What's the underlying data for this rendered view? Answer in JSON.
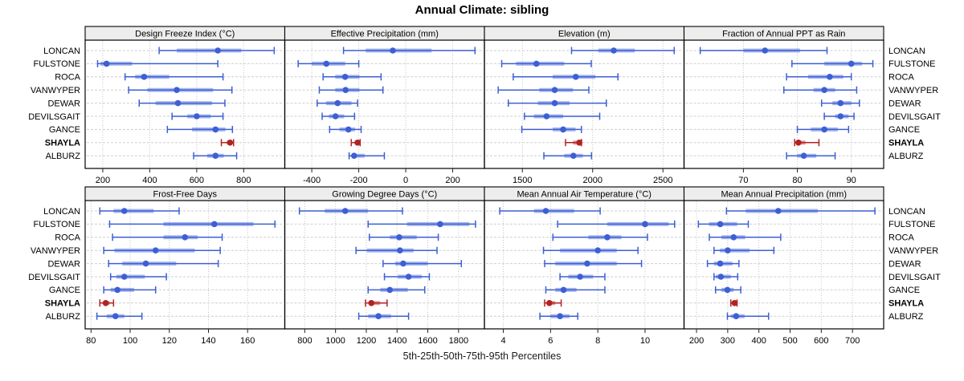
{
  "chart_data": {
    "type": "dotplot-percentiles",
    "title": "Annual Climate: sibling",
    "caption": "5th-25th-50th-75th-95th Percentiles",
    "percentile_labels": [
      "5th",
      "25th",
      "50th",
      "75th",
      "95th"
    ],
    "rows": [
      "LONCAN",
      "FULSTONE",
      "ROCA",
      "VANWYPER",
      "DEWAR",
      "DEVILSGAIT",
      "GANCE",
      "SHAYLA",
      "ALBURZ"
    ],
    "highlighted_row": "SHAYLA",
    "legend_position": "none",
    "grid": "dotted",
    "colors": {
      "series": "#3C5FD4",
      "series_band": "rgba(60,95,212,0.45)",
      "highlight": "#B22222",
      "highlight_band": "rgba(178,34,34,0.45)",
      "gridline": "#C4C4C4",
      "row_guide": "#CFCFCF",
      "strip_bg": "#EDEDED",
      "border": "#000000"
    },
    "panels": [
      {
        "title": "Design Freeze Index (°C)",
        "grid_row": 0,
        "grid_col": 0,
        "xlim": [
          125,
          975
        ],
        "ticks": [
          200,
          400,
          600,
          800
        ],
        "values": [
          [
            440,
            515,
            690,
            790,
            930
          ],
          [
            178,
            190,
            216,
            325,
            690
          ],
          [
            295,
            338,
            376,
            483,
            712
          ],
          [
            310,
            390,
            515,
            670,
            750
          ],
          [
            355,
            425,
            520,
            665,
            720
          ],
          [
            495,
            560,
            600,
            660,
            712
          ],
          [
            475,
            580,
            680,
            722,
            752
          ],
          [
            705,
            728,
            742,
            750,
            757
          ],
          [
            587,
            645,
            680,
            715,
            770
          ]
        ]
      },
      {
        "title": "Effective Precipitation (mm)",
        "grid_row": 0,
        "grid_col": 1,
        "xlim": [
          -515,
          335
        ],
        "ticks": [
          -400,
          -200,
          0,
          200
        ],
        "values": [
          [
            -265,
            -170,
            -55,
            110,
            295
          ],
          [
            -458,
            -400,
            -338,
            -258,
            -200
          ],
          [
            -352,
            -300,
            -258,
            -197,
            -105
          ],
          [
            -368,
            -300,
            -256,
            -197,
            -97
          ],
          [
            -377,
            -339,
            -290,
            -231,
            -205
          ],
          [
            -356,
            -327,
            -299,
            -262,
            -218
          ],
          [
            -324,
            -282,
            -244,
            -216,
            -190
          ],
          [
            -232,
            -218,
            -205,
            -200,
            -194
          ],
          [
            -241,
            -228,
            -220,
            -175,
            -91
          ]
        ]
      },
      {
        "title": "Elevation (m)",
        "grid_row": 0,
        "grid_col": 2,
        "xlim": [
          1230,
          2650
        ],
        "ticks": [
          1500,
          2000,
          2500
        ],
        "values": [
          [
            1850,
            2040,
            2150,
            2300,
            2580
          ],
          [
            1353,
            1455,
            1600,
            1798,
            1990
          ],
          [
            1435,
            1715,
            1880,
            2020,
            2180
          ],
          [
            1328,
            1620,
            1730,
            1860,
            1973
          ],
          [
            1400,
            1610,
            1730,
            1836,
            2097
          ],
          [
            1515,
            1582,
            1672,
            1790,
            2050
          ],
          [
            1496,
            1716,
            1790,
            1878,
            1920
          ],
          [
            1807,
            1860,
            1905,
            1915,
            1921
          ],
          [
            1653,
            1798,
            1863,
            1930,
            1992
          ]
        ]
      },
      {
        "title": "Fraction of Annual PPT as Rain",
        "grid_row": 0,
        "grid_col": 3,
        "xlim": [
          59,
          96
        ],
        "ticks": [
          70,
          80,
          90
        ],
        "values": [
          [
            62,
            70,
            74,
            80.5,
            85.5
          ],
          [
            79,
            85,
            90,
            92,
            94
          ],
          [
            78,
            82,
            86,
            88.5,
            90
          ],
          [
            77.5,
            83,
            85,
            87,
            91
          ],
          [
            84.5,
            86.5,
            88,
            90,
            91.5
          ],
          [
            85,
            87,
            88,
            89.5,
            90.5
          ],
          [
            80,
            82.5,
            85,
            87.5,
            89.5
          ],
          [
            79.5,
            79.8,
            80.2,
            81.5,
            84
          ],
          [
            78,
            80,
            81.2,
            83.5,
            87
          ]
        ]
      },
      {
        "title": "Frost-Free Days",
        "grid_row": 1,
        "grid_col": 0,
        "xlim": [
          77,
          179
        ],
        "ticks": [
          80,
          100,
          120,
          140,
          160
        ],
        "values": [
          [
            84.5,
            91.5,
            97,
            112,
            125
          ],
          [
            89.5,
            117,
            143,
            163,
            174
          ],
          [
            91,
            117,
            128,
            134.5,
            147
          ],
          [
            86.5,
            92,
            113,
            133,
            146
          ],
          [
            89,
            96,
            108,
            123.5,
            145
          ],
          [
            90,
            93,
            97,
            107.5,
            118.5
          ],
          [
            86.5,
            90,
            93.5,
            102,
            113
          ],
          [
            84.5,
            86.5,
            87.5,
            89.5,
            91.5
          ],
          [
            83,
            88,
            92.5,
            97,
            106
          ]
        ]
      },
      {
        "title": "Growing Degree Days (°C)",
        "grid_row": 1,
        "grid_col": 1,
        "xlim": [
          670,
          1968
        ],
        "ticks": [
          800,
          1000,
          1200,
          1400,
          1600,
          1800
        ],
        "values": [
          [
            765,
            930,
            1063,
            1212,
            1435
          ],
          [
            1212,
            1465,
            1680,
            1870,
            1910
          ],
          [
            1220,
            1353,
            1414,
            1528,
            1668
          ],
          [
            1133,
            1204,
            1419,
            1507,
            1660
          ],
          [
            1309,
            1388,
            1440,
            1600,
            1818
          ],
          [
            1318,
            1405,
            1475,
            1560,
            1610
          ],
          [
            1212,
            1291,
            1353,
            1470,
            1580
          ],
          [
            1195,
            1215,
            1233,
            1290,
            1335
          ],
          [
            1151,
            1212,
            1279,
            1361,
            1475
          ]
        ]
      },
      {
        "title": "Mean Annual Air Temperature (°C)",
        "grid_row": 1,
        "grid_col": 2,
        "xlim": [
          3.2,
          11.65
        ],
        "ticks": [
          4,
          6,
          8,
          10
        ],
        "values": [
          [
            3.85,
            5.3,
            5.8,
            7.0,
            8.1
          ],
          [
            6.3,
            8.4,
            10.0,
            11.0,
            11.25
          ],
          [
            6.1,
            7.6,
            8.4,
            9.0,
            10.1
          ],
          [
            5.7,
            6.4,
            8.0,
            8.8,
            9.7
          ],
          [
            5.75,
            6.2,
            7.55,
            8.8,
            9.85
          ],
          [
            6.4,
            6.75,
            7.25,
            7.8,
            8.3
          ],
          [
            5.8,
            6.2,
            6.55,
            7.1,
            8.3
          ],
          [
            5.75,
            5.85,
            5.95,
            6.2,
            6.45
          ],
          [
            5.55,
            6.0,
            6.4,
            6.8,
            7.15
          ]
        ]
      },
      {
        "title": "Mean Annual Precipitation (mm)",
        "grid_row": 1,
        "grid_col": 3,
        "xlim": [
          160,
          800
        ],
        "ticks": [
          200,
          300,
          400,
          500,
          600,
          700
        ],
        "values": [
          [
            296,
            358,
            462,
            589,
            772
          ],
          [
            206,
            240,
            276,
            330,
            366
          ],
          [
            241,
            280,
            319,
            356,
            470
          ],
          [
            256,
            275,
            300,
            370,
            448
          ],
          [
            235,
            256,
            276,
            315,
            336
          ],
          [
            256,
            262,
            278,
            310,
            332
          ],
          [
            261,
            280,
            299,
            319,
            342
          ],
          [
            310,
            316,
            322,
            326,
            330
          ],
          [
            299,
            310,
            327,
            354,
            431
          ]
        ]
      }
    ]
  }
}
